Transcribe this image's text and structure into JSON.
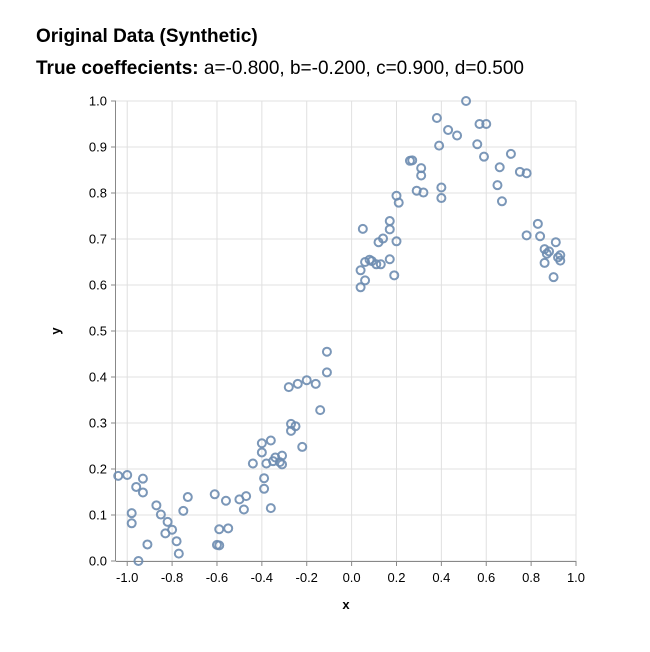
{
  "chart_data": {
    "type": "scatter",
    "title": "Original Data (Synthetic)",
    "subtitle_label": "True coeffecients:",
    "subtitle_values": "a=-0.800, b=-0.200, c=0.900, d=0.500",
    "xlabel": "x",
    "ylabel": "y",
    "xlim": [
      -1.05,
      1.0
    ],
    "ylim": [
      0.0,
      1.0
    ],
    "x_ticks": [
      -1.0,
      -0.8,
      -0.6,
      -0.4,
      -0.2,
      0.0,
      0.2,
      0.4,
      0.6,
      0.8,
      1.0
    ],
    "x_tick_labels": [
      "-1.0",
      "-0.8",
      "-0.6",
      "-0.4",
      "-0.2",
      "0.0",
      "0.2",
      "0.4",
      "0.6",
      "0.8",
      "1.0"
    ],
    "y_ticks": [
      0.0,
      0.1,
      0.2,
      0.3,
      0.4,
      0.5,
      0.6,
      0.7,
      0.8,
      0.9,
      1.0
    ],
    "y_tick_labels": [
      "0.0",
      "0.1",
      "0.2",
      "0.3",
      "0.4",
      "0.5",
      "0.6",
      "0.7",
      "0.8",
      "0.9",
      "1.0"
    ],
    "grid": true,
    "marker": "hollow-circle",
    "point_color": "#6d8cb0",
    "grid_color": "#e0e0e0",
    "axis_color": "#888888",
    "x": [
      -1.04,
      -1.0,
      -0.98,
      -0.98,
      -0.96,
      -0.95,
      -0.93,
      -0.93,
      -0.91,
      -0.87,
      -0.85,
      -0.83,
      -0.82,
      -0.8,
      -0.78,
      -0.77,
      -0.75,
      -0.73,
      -0.61,
      -0.6,
      -0.59,
      -0.59,
      -0.56,
      -0.55,
      -0.5,
      -0.48,
      -0.47,
      -0.44,
      -0.4,
      -0.4,
      -0.39,
      -0.39,
      -0.38,
      -0.36,
      -0.36,
      -0.35,
      -0.34,
      -0.32,
      -0.31,
      -0.31,
      -0.28,
      -0.27,
      -0.27,
      -0.25,
      -0.24,
      -0.22,
      -0.2,
      -0.16,
      -0.14,
      -0.11,
      -0.11,
      0.04,
      0.04,
      0.05,
      0.06,
      0.06,
      0.08,
      0.09,
      0.11,
      0.12,
      0.13,
      0.14,
      0.17,
      0.17,
      0.17,
      0.19,
      0.2,
      0.2,
      0.21,
      0.26,
      0.27,
      0.29,
      0.31,
      0.31,
      0.32,
      0.38,
      0.39,
      0.4,
      0.4,
      0.43,
      0.47,
      0.51,
      0.56,
      0.57,
      0.59,
      0.6,
      0.65,
      0.66,
      0.67,
      0.71,
      0.75,
      0.78,
      0.78,
      0.83,
      0.84,
      0.86,
      0.86,
      0.87,
      0.88,
      0.9,
      0.91,
      0.92,
      0.93,
      0.93
    ],
    "y": [
      0.185,
      0.187,
      0.104,
      0.082,
      0.161,
      0.0,
      0.149,
      0.179,
      0.036,
      0.121,
      0.101,
      0.06,
      0.085,
      0.068,
      0.043,
      0.016,
      0.109,
      0.139,
      0.145,
      0.035,
      0.069,
      0.034,
      0.131,
      0.071,
      0.134,
      0.112,
      0.141,
      0.212,
      0.256,
      0.236,
      0.157,
      0.18,
      0.212,
      0.115,
      0.262,
      0.217,
      0.225,
      0.215,
      0.229,
      0.21,
      0.378,
      0.298,
      0.283,
      0.293,
      0.385,
      0.248,
      0.393,
      0.385,
      0.328,
      0.41,
      0.455,
      0.632,
      0.595,
      0.722,
      0.61,
      0.65,
      0.655,
      0.652,
      0.645,
      0.693,
      0.645,
      0.701,
      0.739,
      0.721,
      0.656,
      0.621,
      0.695,
      0.794,
      0.779,
      0.87,
      0.871,
      0.805,
      0.838,
      0.854,
      0.801,
      0.963,
      0.903,
      0.812,
      0.789,
      0.937,
      0.925,
      1.0,
      0.906,
      0.95,
      0.879,
      0.95,
      0.817,
      0.856,
      0.782,
      0.885,
      0.846,
      0.708,
      0.843,
      0.733,
      0.706,
      0.678,
      0.648,
      0.668,
      0.673,
      0.617,
      0.693,
      0.66,
      0.665,
      0.653
    ]
  }
}
